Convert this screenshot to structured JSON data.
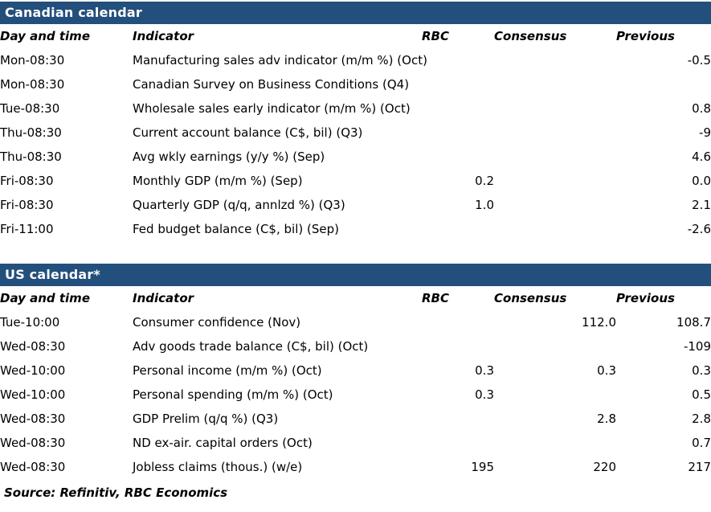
{
  "accent_color": "#234F7D",
  "tables": [
    {
      "title": "Canadian calendar",
      "headers": {
        "day": "Day and time",
        "indicator": "Indicator",
        "rbc": "RBC",
        "consensus": "Consensus",
        "previous": "Previous"
      },
      "rows": [
        {
          "day": "Mon-08:30",
          "indicator": "Manufacturing sales adv indicator (m/m %) (Oct)",
          "rbc": "",
          "consensus": "",
          "previous": "-0.5"
        },
        {
          "day": "Mon-08:30",
          "indicator": "Canadian Survey on Business Conditions (Q4)",
          "rbc": "",
          "consensus": "",
          "previous": ""
        },
        {
          "day": "Tue-08:30",
          "indicator": "Wholesale sales early indicator (m/m %) (Oct)",
          "rbc": "",
          "consensus": "",
          "previous": "0.8"
        },
        {
          "day": "Thu-08:30",
          "indicator": "Current account balance (C$, bil) (Q3)",
          "rbc": "",
          "consensus": "",
          "previous": "-9"
        },
        {
          "day": "Thu-08:30",
          "indicator": "Avg wkly earnings (y/y %) (Sep)",
          "rbc": "",
          "consensus": "",
          "previous": "4.6"
        },
        {
          "day": "Fri-08:30",
          "indicator": "Monthly GDP (m/m %) (Sep)",
          "rbc": "0.2",
          "consensus": "",
          "previous": "0.0"
        },
        {
          "day": "Fri-08:30",
          "indicator": "Quarterly GDP (q/q, annlzd %) (Q3)",
          "rbc": "1.0",
          "consensus": "",
          "previous": "2.1"
        },
        {
          "day": "Fri-11:00",
          "indicator": "Fed budget balance (C$, bil) (Sep)",
          "rbc": "",
          "consensus": "",
          "previous": "-2.6"
        }
      ]
    },
    {
      "title": "US calendar*",
      "headers": {
        "day": "Day and time",
        "indicator": "Indicator",
        "rbc": "RBC",
        "consensus": "Consensus",
        "previous": "Previous"
      },
      "rows": [
        {
          "day": "Tue-10:00",
          "indicator": "Consumer confidence (Nov)",
          "rbc": "",
          "consensus": "112.0",
          "previous": "108.7"
        },
        {
          "day": "Wed-08:30",
          "indicator": "Adv goods trade balance (C$, bil) (Oct)",
          "rbc": "",
          "consensus": "",
          "previous": "-109"
        },
        {
          "day": "Wed-10:00",
          "indicator": "Personal income (m/m %) (Oct)",
          "rbc": "0.3",
          "consensus": "0.3",
          "previous": "0.3"
        },
        {
          "day": "Wed-10:00",
          "indicator": "Personal spending (m/m %) (Oct)",
          "rbc": "0.3",
          "consensus": "",
          "previous": "0.5"
        },
        {
          "day": "Wed-08:30",
          "indicator": "GDP Prelim (q/q %) (Q3)",
          "rbc": "",
          "consensus": "2.8",
          "previous": "2.8"
        },
        {
          "day": "Wed-08:30",
          "indicator": "ND ex-air. capital orders (Oct)",
          "rbc": "",
          "consensus": "",
          "previous": "0.7"
        },
        {
          "day": "Wed-08:30",
          "indicator": "Jobless claims (thous.) (w/e)",
          "rbc": "195",
          "consensus": "220",
          "previous": "217"
        }
      ]
    }
  ],
  "footer": {
    "source": "Source: Refinitiv,  RBC Economics"
  }
}
